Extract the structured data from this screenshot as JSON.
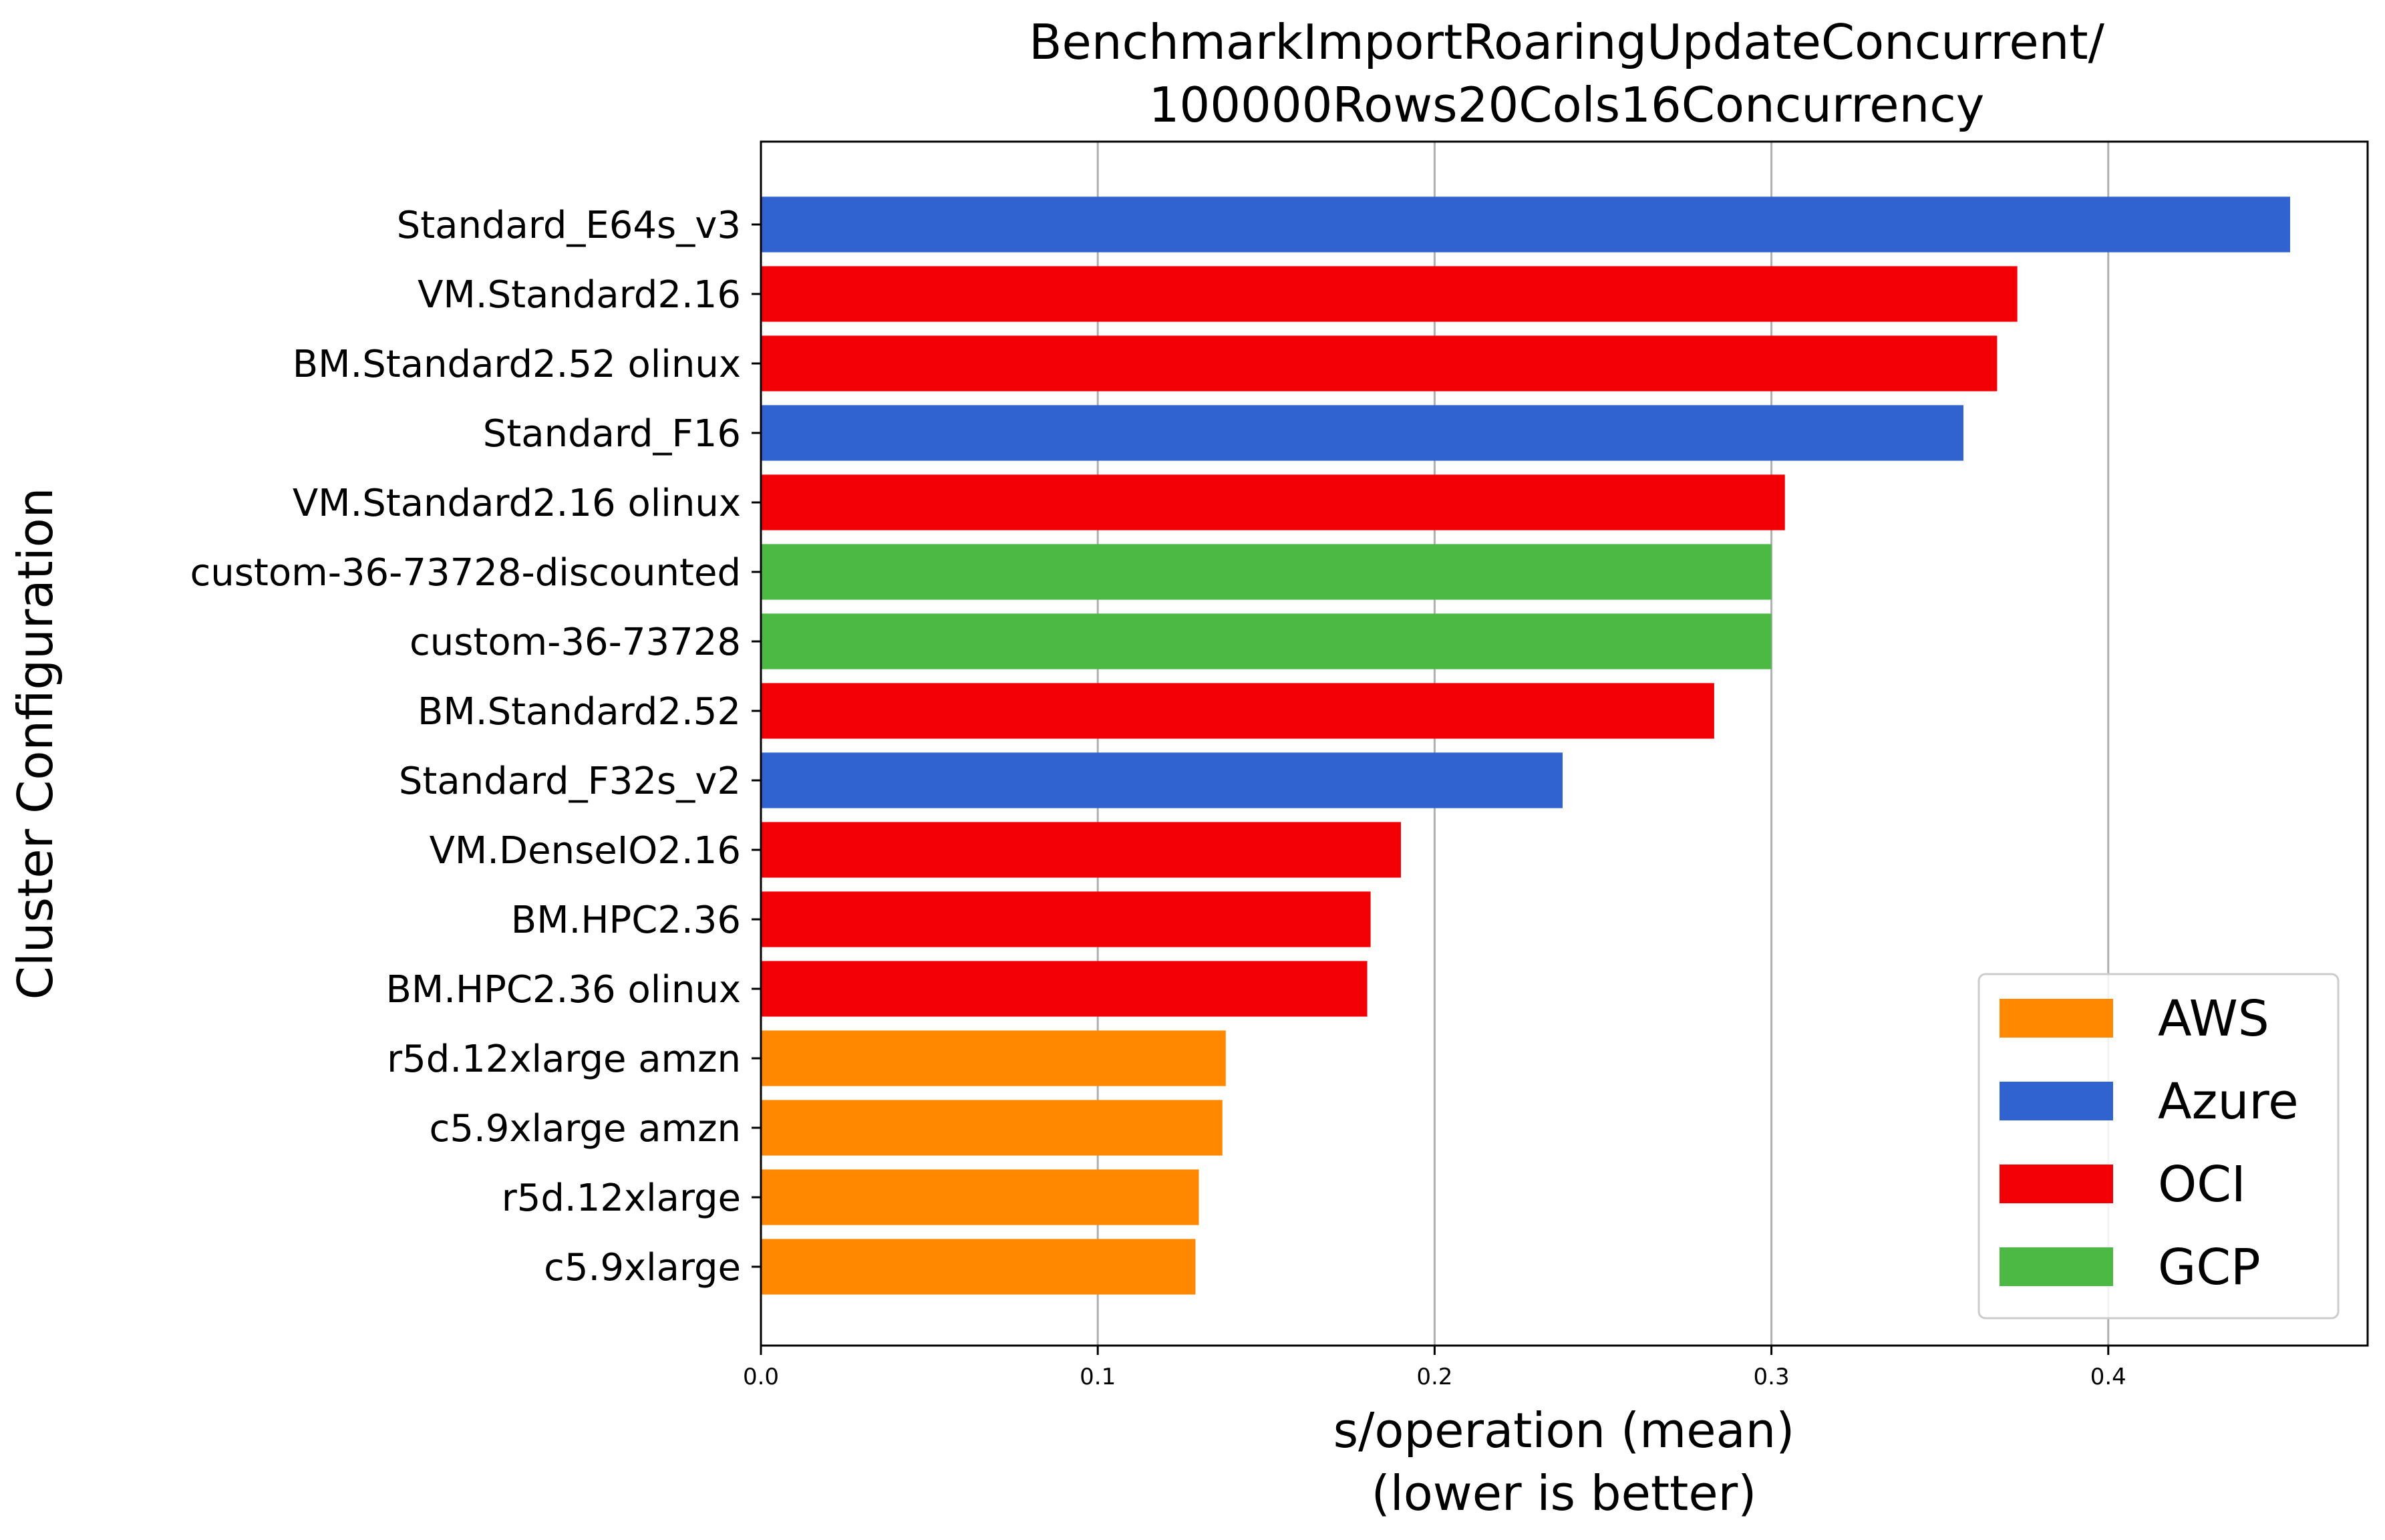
{
  "chart_data": {
    "type": "bar",
    "orientation": "horizontal",
    "title_lines": [
      "BenchmarkImportRoaringUpdateConcurrent/",
      "100000Rows20Cols16Concurrency"
    ],
    "xlabel_lines": [
      "s/operation (mean)",
      "(lower is better)"
    ],
    "ylabel": "Cluster Configuration",
    "xlim": [
      0,
      0.477
    ],
    "xticks": [
      0.0,
      0.1,
      0.2,
      0.3,
      0.4
    ],
    "xtick_labels": [
      "0.0",
      "0.1",
      "0.2",
      "0.3",
      "0.4"
    ],
    "grid": "vertical",
    "legend_position": "lower-right",
    "colors": {
      "AWS": "#ff8800",
      "Azure": "#3063d0",
      "OCI": "#f20006",
      "GCP": "#4cb944"
    },
    "legend": [
      "AWS",
      "Azure",
      "OCI",
      "GCP"
    ],
    "bars": [
      {
        "label": "Standard_E64s_v3",
        "value": 0.454,
        "provider": "Azure"
      },
      {
        "label": "VM.Standard2.16",
        "value": 0.373,
        "provider": "OCI"
      },
      {
        "label": "BM.Standard2.52 olinux",
        "value": 0.367,
        "provider": "OCI"
      },
      {
        "label": "Standard_F16",
        "value": 0.357,
        "provider": "Azure"
      },
      {
        "label": "VM.Standard2.16 olinux",
        "value": 0.304,
        "provider": "OCI"
      },
      {
        "label": "custom-36-73728-discounted",
        "value": 0.3,
        "provider": "GCP"
      },
      {
        "label": "custom-36-73728",
        "value": 0.3,
        "provider": "GCP"
      },
      {
        "label": "BM.Standard2.52",
        "value": 0.283,
        "provider": "OCI"
      },
      {
        "label": "Standard_F32s_v2",
        "value": 0.238,
        "provider": "Azure"
      },
      {
        "label": "VM.DenseIO2.16",
        "value": 0.19,
        "provider": "OCI"
      },
      {
        "label": "BM.HPC2.36",
        "value": 0.181,
        "provider": "OCI"
      },
      {
        "label": "BM.HPC2.36 olinux",
        "value": 0.18,
        "provider": "OCI"
      },
      {
        "label": "r5d.12xlarge amzn",
        "value": 0.138,
        "provider": "AWS"
      },
      {
        "label": "c5.9xlarge amzn",
        "value": 0.137,
        "provider": "AWS"
      },
      {
        "label": "r5d.12xlarge",
        "value": 0.13,
        "provider": "AWS"
      },
      {
        "label": "c5.9xlarge",
        "value": 0.129,
        "provider": "AWS"
      }
    ]
  }
}
